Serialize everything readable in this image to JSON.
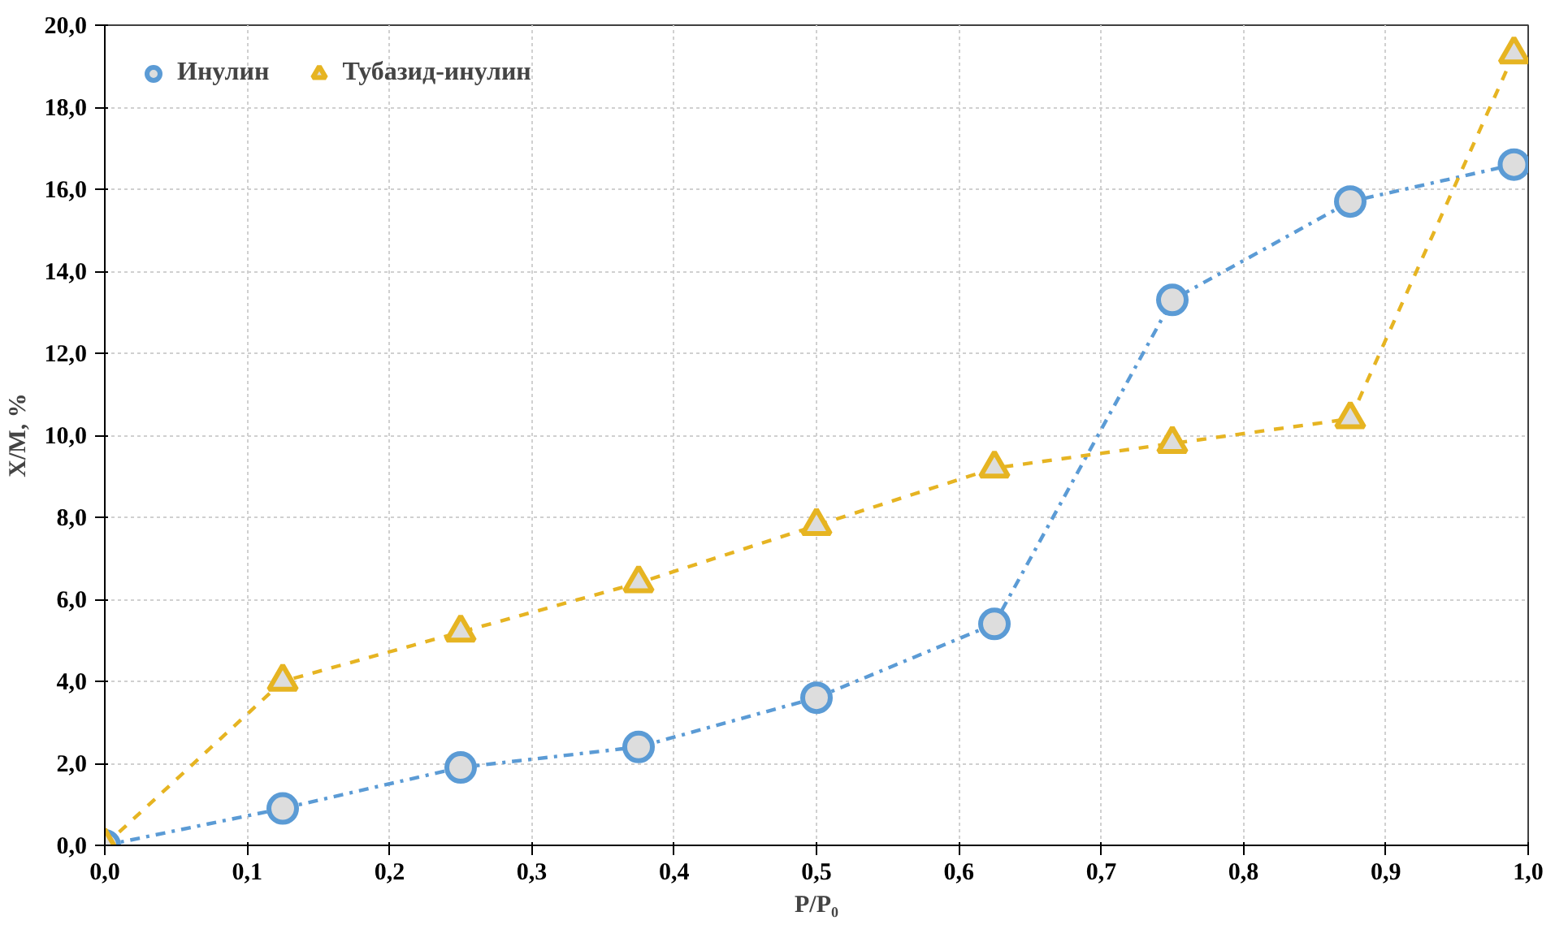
{
  "chart_data": {
    "type": "line",
    "xlabel": "P/P₀",
    "ylabel": "X/M, %",
    "x": [
      0,
      0.125,
      0.25,
      0.375,
      0.5,
      0.625,
      0.75,
      0.875,
      0.99
    ],
    "series": [
      {
        "name": "Инулин",
        "color": "#5b9bd5",
        "marker": "circle",
        "line_style": "dashdot",
        "values": [
          0,
          0.9,
          1.9,
          2.4,
          3.6,
          5.4,
          13.3,
          15.7,
          16.6
        ]
      },
      {
        "name": "Тубазид-инулин",
        "color": "#e6b422",
        "marker": "triangle",
        "line_style": "dashed",
        "values": [
          0,
          4.0,
          5.2,
          6.4,
          7.8,
          9.2,
          9.8,
          10.4,
          19.3
        ]
      }
    ],
    "xlim": [
      0,
      1
    ],
    "ylim": [
      0,
      20
    ],
    "xticks": [
      {
        "value": 0,
        "label": "0,0"
      },
      {
        "value": 0.1,
        "label": "0,1"
      },
      {
        "value": 0.2,
        "label": "0,2"
      },
      {
        "value": 0.3,
        "label": "0,3"
      },
      {
        "value": 0.4,
        "label": "0,4"
      },
      {
        "value": 0.5,
        "label": "0,5"
      },
      {
        "value": 0.6,
        "label": "0,6"
      },
      {
        "value": 0.7,
        "label": "0,7"
      },
      {
        "value": 0.8,
        "label": "0,8"
      },
      {
        "value": 0.9,
        "label": "0,9"
      },
      {
        "value": 1,
        "label": "1,0"
      }
    ],
    "yticks": [
      {
        "value": 0,
        "label": "0,0"
      },
      {
        "value": 2,
        "label": "2,0"
      },
      {
        "value": 4,
        "label": "4,0"
      },
      {
        "value": 6,
        "label": "6,0"
      },
      {
        "value": 8,
        "label": "8,0"
      },
      {
        "value": 10,
        "label": "10,0"
      },
      {
        "value": 12,
        "label": "12,0"
      },
      {
        "value": 14,
        "label": "14,0"
      },
      {
        "value": 16,
        "label": "16,0"
      },
      {
        "value": 18,
        "label": "18,0"
      },
      {
        "value": 20,
        "label": "20,0"
      }
    ],
    "grid": true,
    "legend": "top left"
  }
}
